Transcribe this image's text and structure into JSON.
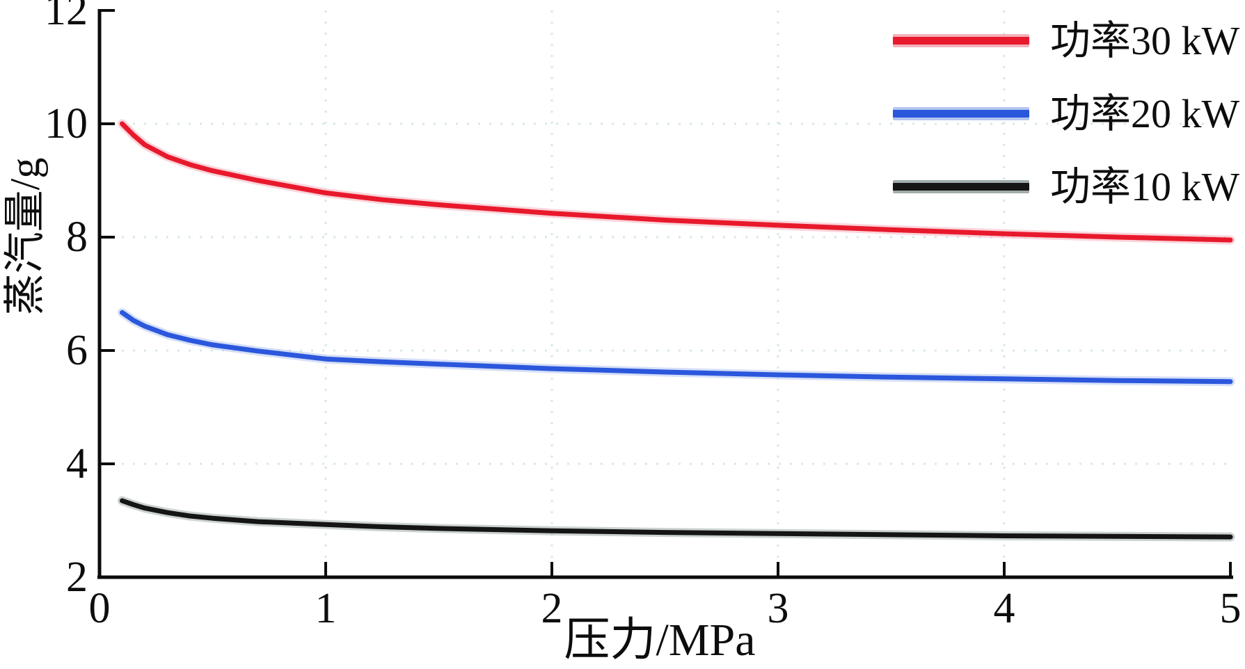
{
  "chart_data": {
    "type": "line",
    "title": "",
    "xlabel": "压力/MPa",
    "ylabel": "蒸汽量/g",
    "xlim": [
      0,
      5
    ],
    "ylim": [
      2,
      12
    ],
    "xticks": [
      0,
      1,
      2,
      3,
      4,
      5
    ],
    "yticks": [
      2,
      4,
      6,
      8,
      10,
      12
    ],
    "grid": true,
    "grid_style": "dotted",
    "legend_position": "top-right",
    "x": [
      0.1,
      0.15,
      0.2,
      0.3,
      0.4,
      0.5,
      0.7,
      1.0,
      1.25,
      1.5,
      2.0,
      2.5,
      3.0,
      3.5,
      4.0,
      4.5,
      5.0
    ],
    "series": [
      {
        "name": "功率30 kW",
        "color": "#e8192c",
        "halo_color": "#f4b0bb",
        "values": [
          10.0,
          9.8,
          9.63,
          9.42,
          9.28,
          9.17,
          9.0,
          8.78,
          8.66,
          8.57,
          8.42,
          8.3,
          8.21,
          8.13,
          8.06,
          8.0,
          7.95
        ]
      },
      {
        "name": "功率20 kW",
        "color": "#2b57dc",
        "halo_color": "#b3c5f1",
        "values": [
          6.67,
          6.53,
          6.43,
          6.28,
          6.18,
          6.1,
          5.99,
          5.85,
          5.8,
          5.76,
          5.68,
          5.62,
          5.57,
          5.53,
          5.5,
          5.47,
          5.45
        ]
      },
      {
        "name": "功率10 kW",
        "color": "#151515",
        "halo_color": "#a2acac",
        "values": [
          3.35,
          3.28,
          3.22,
          3.14,
          3.08,
          3.04,
          2.98,
          2.93,
          2.89,
          2.86,
          2.82,
          2.79,
          2.77,
          2.75,
          2.73,
          2.72,
          2.71
        ]
      }
    ]
  },
  "colors": {
    "background": "#ffffff",
    "axis": "#0c0c0c",
    "tick": "#0c0c0c",
    "text": "#0d0d0d",
    "gridline": "#d8e7e7"
  }
}
